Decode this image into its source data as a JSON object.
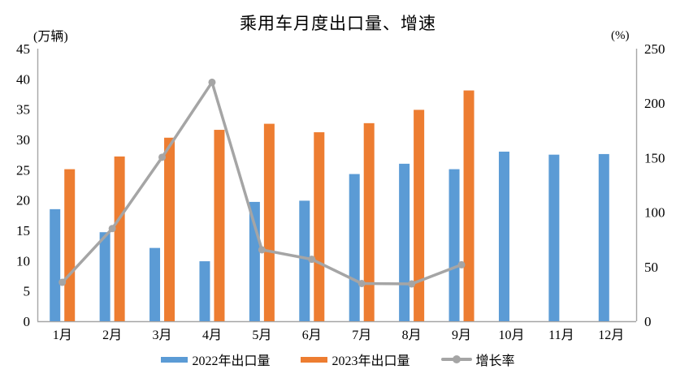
{
  "chart_data": {
    "type": "bar",
    "title": "乘用车月度出口量、增速",
    "categories": [
      "1月",
      "2月",
      "3月",
      "4月",
      "5月",
      "6月",
      "7月",
      "8月",
      "9月",
      "10月",
      "11月",
      "12月"
    ],
    "series": [
      {
        "id": "export-2022",
        "name": "2022年出口量",
        "type": "bar",
        "axis": "left",
        "color": "#5B9BD5",
        "values": [
          18.5,
          14.7,
          12.1,
          9.9,
          19.7,
          19.9,
          24.3,
          26.0,
          25.1,
          28.0,
          27.5,
          27.6
        ]
      },
      {
        "id": "export-2023",
        "name": "2023年出口量",
        "type": "bar",
        "axis": "left",
        "color": "#ED7D31",
        "values": [
          25.1,
          27.2,
          30.3,
          31.6,
          32.6,
          31.2,
          32.7,
          34.9,
          38.1
        ]
      },
      {
        "id": "growth-rate",
        "name": "增长率",
        "type": "line",
        "axis": "right",
        "color": "#A5A5A5",
        "values": [
          35.7,
          85.0,
          150.4,
          219.2,
          65.5,
          56.8,
          34.6,
          34.2,
          51.8
        ]
      }
    ],
    "left_axis": {
      "unit": "(万辆)",
      "min": 0,
      "max": 45,
      "step": 5
    },
    "right_axis": {
      "unit": "(%)",
      "min": 0,
      "max": 250,
      "step": 50
    },
    "axis_color": "#A6A6A6",
    "grid": false,
    "legend_position": "bottom"
  }
}
